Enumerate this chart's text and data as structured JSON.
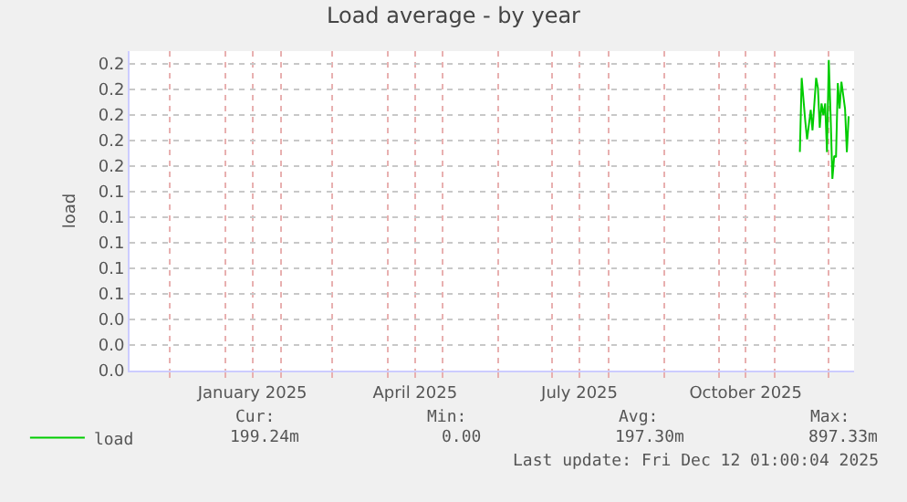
{
  "chart_data": {
    "type": "line",
    "title": "Load average - by year",
    "ylabel": "load",
    "x": [
      "2025-11-15",
      "2025-11-16",
      "2025-11-18",
      "2025-11-19",
      "2025-11-21",
      "2025-11-22",
      "2025-11-24",
      "2025-11-25",
      "2025-11-26",
      "2025-11-27",
      "2025-11-28",
      "2025-11-29",
      "2025-11-30",
      "2025-12-01",
      "2025-12-02",
      "2025-12-03",
      "2025-12-04",
      "2025-12-05",
      "2025-12-06",
      "2025-12-07",
      "2025-12-08",
      "2025-12-10",
      "2025-12-11",
      "2025-12-12"
    ],
    "series": [
      {
        "name": "load",
        "color": "#00cc00",
        "values": [
          0.171,
          0.229,
          0.195,
          0.181,
          0.204,
          0.188,
          0.229,
          0.221,
          0.19,
          0.209,
          0.2,
          0.209,
          0.171,
          0.243,
          0.2,
          0.15,
          0.168,
          0.167,
          0.225,
          0.205,
          0.226,
          0.205,
          0.171,
          0.199
        ]
      }
    ],
    "xlim": [
      "2024-11-09",
      "2025-12-15"
    ],
    "xticks": [
      {
        "value": "2024-12-01",
        "label": null
      },
      {
        "value": "2025-01-01",
        "label": null
      },
      {
        "value": "2025-01-16",
        "label": "January 2025"
      },
      {
        "value": "2025-02-01",
        "label": null
      },
      {
        "value": "2025-03-01",
        "label": null
      },
      {
        "value": "2025-04-01",
        "label": null
      },
      {
        "value": "2025-04-16",
        "label": "April 2025"
      },
      {
        "value": "2025-05-01",
        "label": null
      },
      {
        "value": "2025-06-01",
        "label": null
      },
      {
        "value": "2025-07-01",
        "label": null
      },
      {
        "value": "2025-07-16",
        "label": "July 2025"
      },
      {
        "value": "2025-08-01",
        "label": null
      },
      {
        "value": "2025-09-01",
        "label": null
      },
      {
        "value": "2025-10-01",
        "label": null
      },
      {
        "value": "2025-10-16",
        "label": "October 2025"
      },
      {
        "value": "2025-11-01",
        "label": null
      },
      {
        "value": "2025-12-01",
        "label": null
      }
    ],
    "ylim": [
      0,
      0.25
    ],
    "yticks": [
      {
        "value": 0,
        "label": "0.0"
      },
      {
        "value": 0.02,
        "label": "0.0"
      },
      {
        "value": 0.04,
        "label": "0.0"
      },
      {
        "value": 0.06,
        "label": "0.1"
      },
      {
        "value": 0.08,
        "label": "0.1"
      },
      {
        "value": 0.1,
        "label": "0.1"
      },
      {
        "value": 0.12,
        "label": "0.1"
      },
      {
        "value": 0.14,
        "label": "0.1"
      },
      {
        "value": 0.16,
        "label": "0.2"
      },
      {
        "value": 0.18,
        "label": "0.2"
      },
      {
        "value": 0.2,
        "label": "0.2"
      },
      {
        "value": 0.22,
        "label": "0.2"
      },
      {
        "value": 0.24,
        "label": "0.2"
      }
    ],
    "grid": true,
    "legend": "bottom left",
    "marker": "none",
    "line_style": "solid",
    "annotations": [
      "Cur:",
      "Min:",
      "Avg:",
      "Max:",
      "199.24m",
      "0.00",
      "197.30m",
      "897.33m",
      "Last update: Fri Dec 12 01:00:04 2025"
    ]
  }
}
